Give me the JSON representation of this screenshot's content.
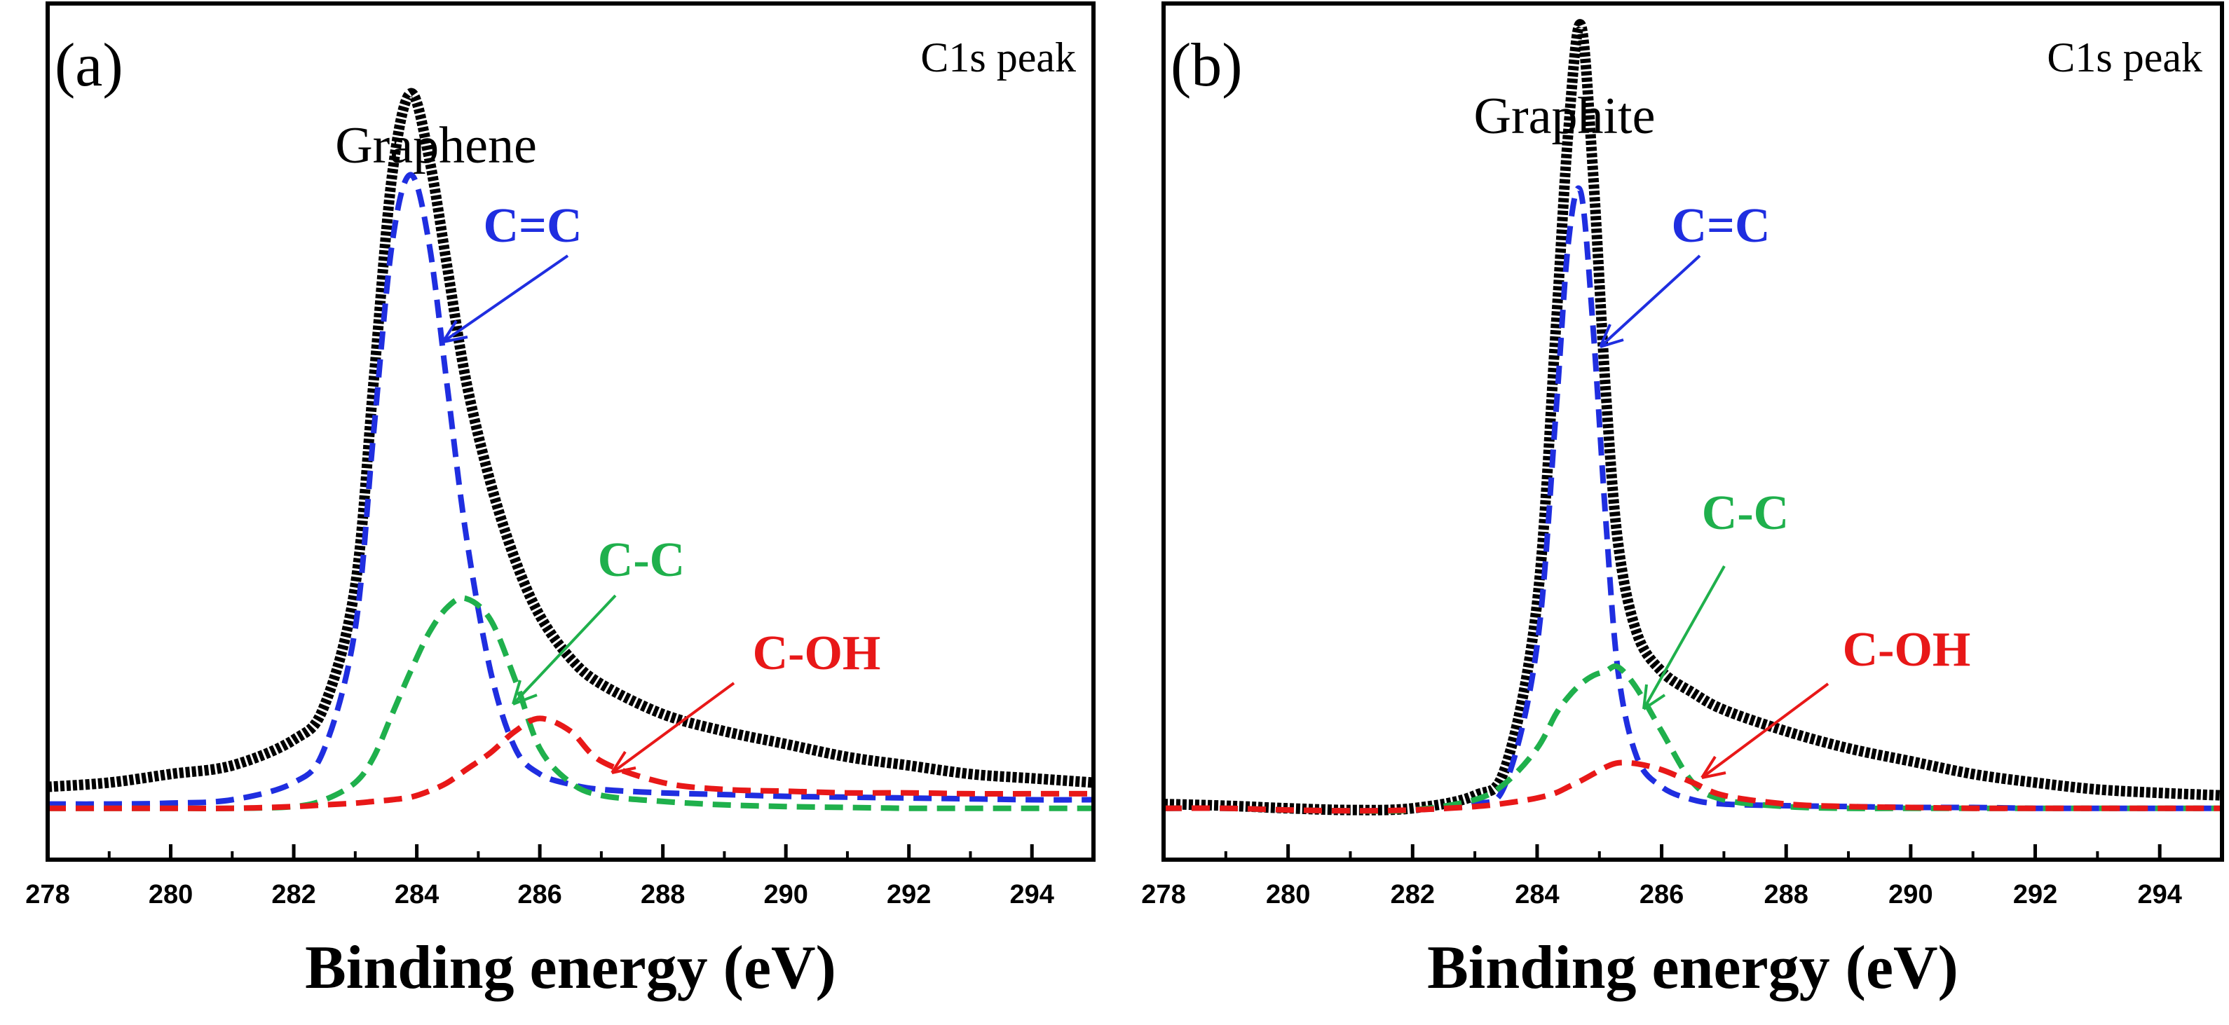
{
  "colors": {
    "measured": "#000000",
    "c_eq_c": "#1f2ee0",
    "c_c": "#1fb04c",
    "c_oh": "#e81818"
  },
  "chart_data": [
    {
      "type": "line",
      "panel_label": "(a)",
      "title": "Graphene",
      "corner_note": "C1s peak",
      "xlabel": "Binding energy (eV)",
      "ylabel": "",
      "xlim": [
        278,
        295
      ],
      "ylim": [
        0,
        1.0
      ],
      "xticks": [
        278,
        280,
        282,
        284,
        286,
        288,
        290,
        292,
        294
      ],
      "grid": false,
      "x": [
        278,
        279,
        280,
        281,
        282,
        282.5,
        283,
        283.3,
        283.6,
        283.9,
        284.2,
        284.5,
        284.8,
        285.2,
        285.6,
        286.0,
        286.5,
        287,
        288,
        289,
        290,
        291,
        292,
        293,
        294,
        295
      ],
      "series": [
        {
          "name": "",
          "role": "measured",
          "style": "solid-thick",
          "values": [
            0.085,
            0.09,
            0.1,
            0.11,
            0.14,
            0.18,
            0.32,
            0.56,
            0.8,
            0.895,
            0.82,
            0.69,
            0.56,
            0.44,
            0.35,
            0.285,
            0.235,
            0.205,
            0.17,
            0.15,
            0.135,
            0.12,
            0.11,
            0.1,
            0.095,
            0.09
          ]
        },
        {
          "name": "C=C",
          "role": "c_eq_c",
          "style": "dashed",
          "values": [
            0.065,
            0.065,
            0.066,
            0.07,
            0.09,
            0.13,
            0.27,
            0.5,
            0.72,
            0.8,
            0.72,
            0.55,
            0.38,
            0.22,
            0.13,
            0.1,
            0.088,
            0.082,
            0.078,
            0.076,
            0.074,
            0.073,
            0.072,
            0.071,
            0.07,
            0.07
          ]
        },
        {
          "name": "C-C",
          "role": "c_c",
          "style": "dashed",
          "values": [
            0.06,
            0.06,
            0.06,
            0.06,
            0.062,
            0.07,
            0.09,
            0.12,
            0.17,
            0.22,
            0.265,
            0.295,
            0.305,
            0.28,
            0.21,
            0.13,
            0.09,
            0.075,
            0.068,
            0.064,
            0.062,
            0.061,
            0.06,
            0.06,
            0.06,
            0.06
          ]
        },
        {
          "name": "C-OH",
          "role": "c_oh",
          "style": "dashed",
          "values": [
            0.06,
            0.06,
            0.06,
            0.06,
            0.062,
            0.064,
            0.066,
            0.068,
            0.07,
            0.073,
            0.08,
            0.09,
            0.105,
            0.125,
            0.15,
            0.165,
            0.15,
            0.115,
            0.09,
            0.082,
            0.08,
            0.078,
            0.078,
            0.077,
            0.077,
            0.077
          ]
        }
      ]
    },
    {
      "type": "line",
      "panel_label": "(b)",
      "title": "Graphite",
      "corner_note": "C1s peak",
      "xlabel": "Binding energy (eV)",
      "ylabel": "",
      "xlim": [
        278,
        295
      ],
      "ylim": [
        0,
        1.0
      ],
      "xticks": [
        278,
        280,
        282,
        284,
        286,
        288,
        290,
        292,
        294
      ],
      "grid": false,
      "x": [
        278,
        279,
        280,
        281,
        282,
        283,
        283.5,
        284,
        284.3,
        284.5,
        284.7,
        284.9,
        285.1,
        285.3,
        285.6,
        286.0,
        286.5,
        287,
        288,
        289,
        290,
        291,
        292,
        293,
        294,
        295
      ],
      "series": [
        {
          "name": "",
          "role": "measured",
          "style": "solid-thick",
          "values": [
            0.065,
            0.063,
            0.06,
            0.058,
            0.06,
            0.075,
            0.11,
            0.3,
            0.62,
            0.85,
            0.975,
            0.8,
            0.55,
            0.37,
            0.265,
            0.22,
            0.195,
            0.175,
            0.15,
            0.13,
            0.115,
            0.1,
            0.09,
            0.082,
            0.078,
            0.075
          ]
        },
        {
          "name": "C=C",
          "role": "c_eq_c",
          "style": "dashed",
          "values": [
            0.06,
            0.06,
            0.058,
            0.057,
            0.058,
            0.065,
            0.09,
            0.25,
            0.52,
            0.72,
            0.78,
            0.62,
            0.4,
            0.22,
            0.12,
            0.085,
            0.07,
            0.065,
            0.063,
            0.062,
            0.061,
            0.061,
            0.06,
            0.06,
            0.06,
            0.06
          ]
        },
        {
          "name": "C-C",
          "role": "c_c",
          "style": "dashed",
          "values": [
            0.06,
            0.06,
            0.058,
            0.057,
            0.058,
            0.07,
            0.09,
            0.13,
            0.17,
            0.19,
            0.205,
            0.215,
            0.22,
            0.225,
            0.2,
            0.15,
            0.09,
            0.07,
            0.062,
            0.06,
            0.06,
            0.06,
            0.06,
            0.06,
            0.06,
            0.06
          ]
        },
        {
          "name": "C-OH",
          "role": "c_oh",
          "style": "dashed",
          "values": [
            0.06,
            0.06,
            0.058,
            0.057,
            0.058,
            0.062,
            0.066,
            0.072,
            0.078,
            0.085,
            0.092,
            0.1,
            0.108,
            0.113,
            0.112,
            0.105,
            0.09,
            0.075,
            0.065,
            0.062,
            0.061,
            0.06,
            0.06,
            0.06,
            0.06,
            0.06
          ]
        }
      ]
    }
  ]
}
